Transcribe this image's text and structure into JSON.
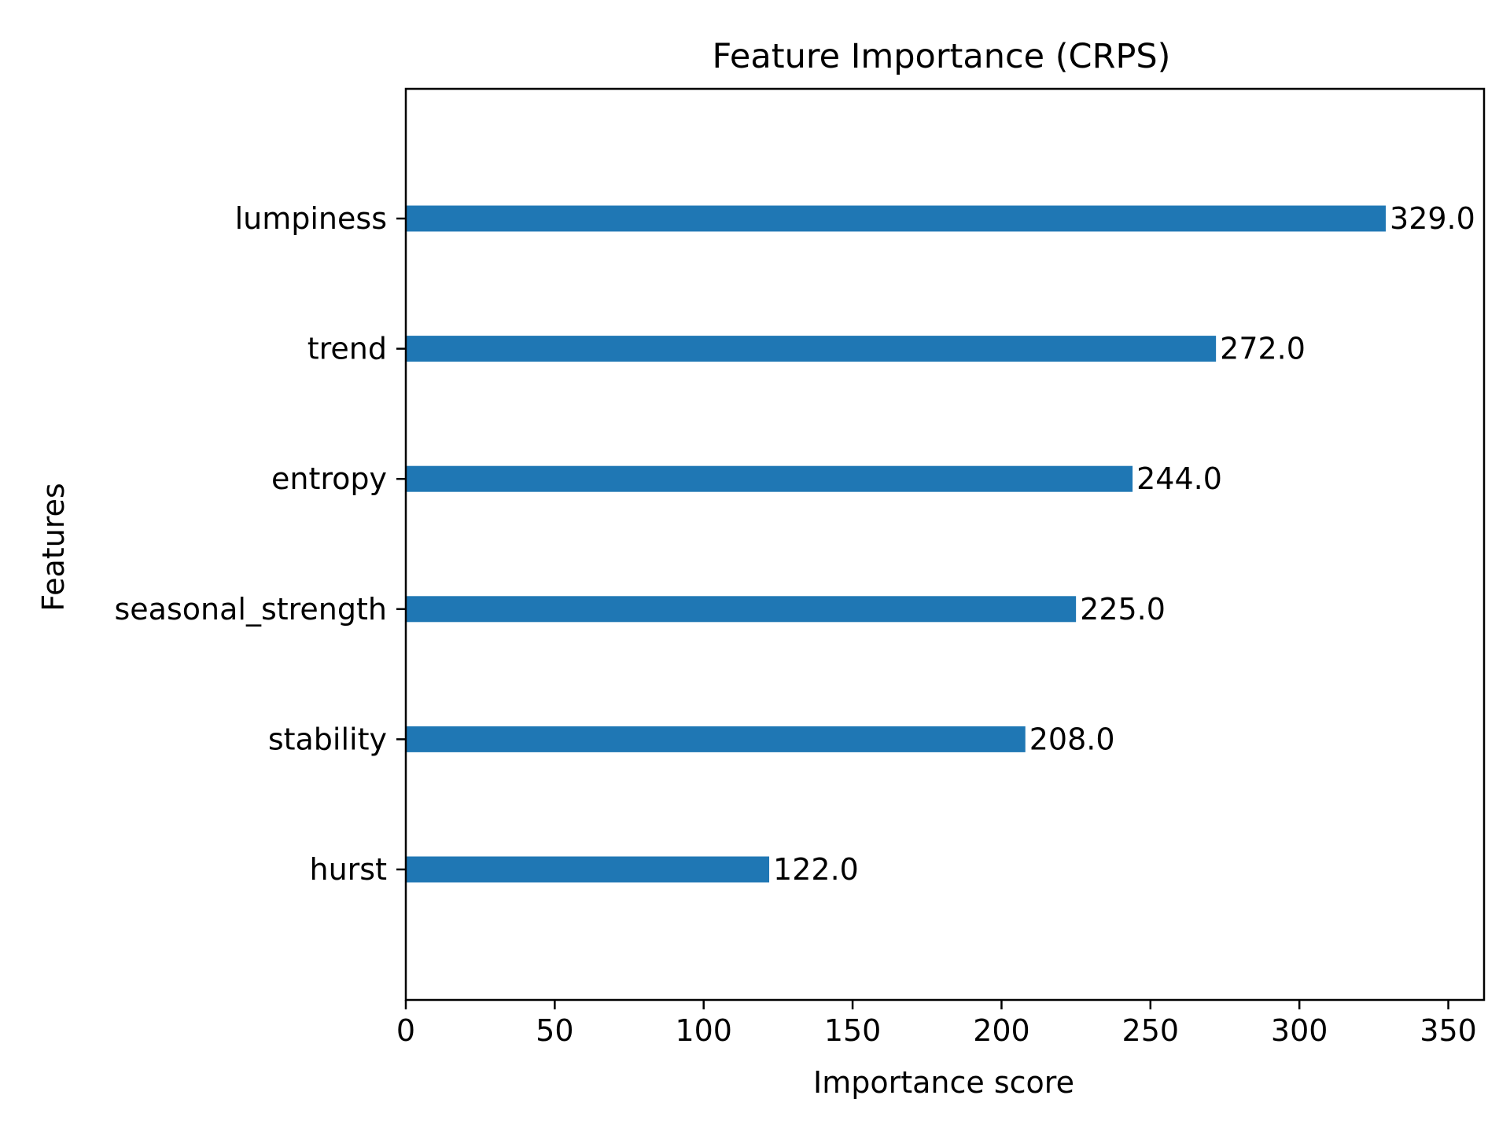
{
  "chart_data": {
    "type": "bar",
    "orientation": "horizontal",
    "title": "Feature Importance (CRPS)",
    "xlabel": "Importance score",
    "ylabel": "Features",
    "categories": [
      "lumpiness",
      "trend",
      "entropy",
      "seasonal_strength",
      "stability",
      "hurst"
    ],
    "values": [
      329.0,
      272.0,
      244.0,
      225.0,
      208.0,
      122.0
    ],
    "data_labels": [
      "329.0",
      "272.0",
      "244.0",
      "225.0",
      "208.0",
      "122.0"
    ],
    "xlim": [
      0,
      362
    ],
    "x_ticks": [
      0,
      50,
      100,
      150,
      200,
      250,
      300,
      350
    ],
    "grid": false,
    "bar_color": "#1f77b4"
  }
}
